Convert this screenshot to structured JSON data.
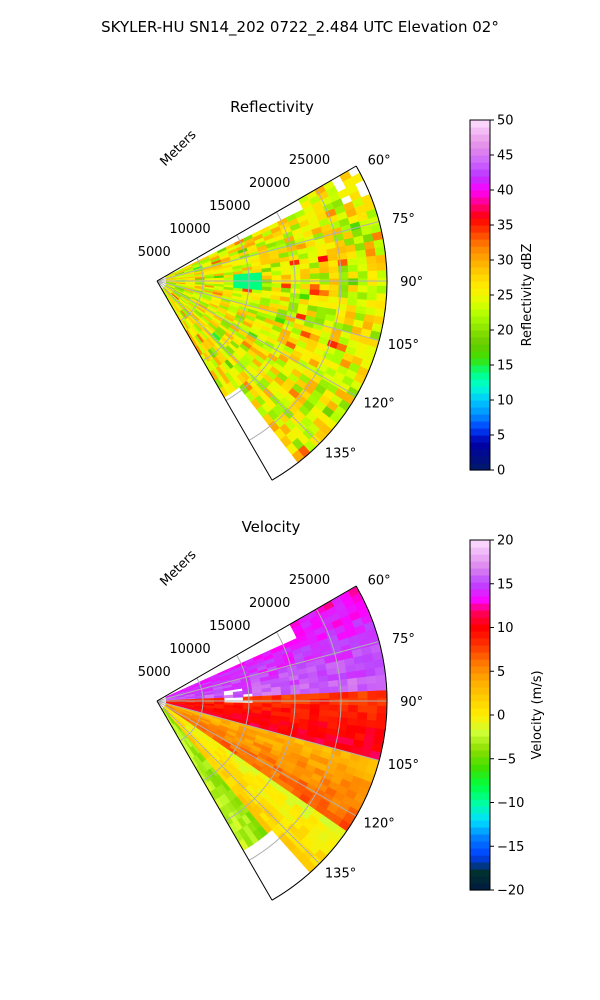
{
  "suptitle": "SKYLER-HU  SN14_202  0722_2.484 UTC Elevation 02°",
  "chart_data": [
    {
      "type": "heatmap",
      "title": "Reflectivity",
      "projection": "polar-sector",
      "range_axis_label": "Meters",
      "range_ticks": [
        5000,
        10000,
        15000,
        20000,
        25000
      ],
      "range_tick_labels": [
        "5000",
        "10000",
        "15000",
        "20000",
        "25000"
      ],
      "range_max": 25000,
      "azimuth_range": [
        60,
        150
      ],
      "azimuth_ticks": [
        60,
        75,
        90,
        105,
        120,
        135
      ],
      "azimuth_tick_labels": [
        "60°",
        "75°",
        "90°",
        "105°",
        "120°",
        "135°"
      ],
      "grid": true,
      "colorbar": {
        "label": "Reflectivity dBZ",
        "min": 0,
        "max": 50,
        "ticks": [
          0,
          5,
          10,
          15,
          20,
          25,
          30,
          35,
          40,
          45,
          50
        ],
        "tick_labels": [
          "0",
          "5",
          "10",
          "15",
          "20",
          "25",
          "30",
          "35",
          "40",
          "45",
          "50"
        ],
        "stops": [
          [
            0,
            "#001a66"
          ],
          [
            4,
            "#0000aa"
          ],
          [
            6,
            "#0040ff"
          ],
          [
            8,
            "#0090ff"
          ],
          [
            10,
            "#00c8ff"
          ],
          [
            12,
            "#00ffd0"
          ],
          [
            14,
            "#00ff80"
          ],
          [
            16,
            "#40e000"
          ],
          [
            18,
            "#66cc00"
          ],
          [
            20,
            "#88e000"
          ],
          [
            22,
            "#aaff00"
          ],
          [
            24,
            "#ddff00"
          ],
          [
            26,
            "#ffee00"
          ],
          [
            28,
            "#ffd000"
          ],
          [
            30,
            "#ffaa00"
          ],
          [
            32,
            "#ff8000"
          ],
          [
            34,
            "#ff4000"
          ],
          [
            36,
            "#ff0000"
          ],
          [
            38,
            "#ff0080"
          ],
          [
            40,
            "#ff00ff"
          ],
          [
            42,
            "#bb33ff"
          ],
          [
            44,
            "#cc66ff"
          ],
          [
            46,
            "#e088e8"
          ],
          [
            48,
            "#f0b0f0"
          ],
          [
            50,
            "#ffe0ff"
          ]
        ]
      },
      "field_summary": {
        "dominant_range_dBZ": [
          20,
          30
        ],
        "notes": "Mostly green-yellow (20-30 dBZ) with scattered orange/red cells (30-38 dBZ) and a small cyan gap near 90° at ~10000 m; sparse edges near 60° and 135°."
      }
    },
    {
      "type": "heatmap",
      "title": "Velocity",
      "projection": "polar-sector",
      "range_axis_label": "Meters",
      "range_ticks": [
        5000,
        10000,
        15000,
        20000,
        25000
      ],
      "range_tick_labels": [
        "5000",
        "10000",
        "15000",
        "20000",
        "25000"
      ],
      "range_max": 25000,
      "azimuth_range": [
        60,
        150
      ],
      "azimuth_ticks": [
        60,
        75,
        90,
        105,
        120,
        135
      ],
      "azimuth_tick_labels": [
        "60°",
        "75°",
        "90°",
        "105°",
        "120°",
        "135°"
      ],
      "grid": true,
      "colorbar": {
        "label": "Velocity (m/s)",
        "min": -20,
        "max": 20,
        "ticks": [
          -20,
          -15,
          -10,
          -5,
          0,
          5,
          10,
          15,
          20
        ],
        "tick_labels": [
          "−20",
          "−15",
          "−10",
          "−5",
          "0",
          "5",
          "10",
          "15",
          "20"
        ],
        "stops": [
          [
            -20,
            "#001a40"
          ],
          [
            -18,
            "#003030"
          ],
          [
            -16,
            "#0040ff"
          ],
          [
            -14,
            "#0080ff"
          ],
          [
            -12,
            "#00e0ff"
          ],
          [
            -10,
            "#00ffa0"
          ],
          [
            -8,
            "#00ff40"
          ],
          [
            -6,
            "#40e000"
          ],
          [
            -4,
            "#88dd00"
          ],
          [
            -2,
            "#ccff33"
          ],
          [
            0,
            "#ffee00"
          ],
          [
            2,
            "#ffcc00"
          ],
          [
            4,
            "#ffaa00"
          ],
          [
            6,
            "#ff7700"
          ],
          [
            8,
            "#ff3300"
          ],
          [
            10,
            "#ff0000"
          ],
          [
            12,
            "#ff0066"
          ],
          [
            13,
            "#ff00ff"
          ],
          [
            15,
            "#bb44ff"
          ],
          [
            17,
            "#dd88ee"
          ],
          [
            20,
            "#ffe0ff"
          ]
        ]
      },
      "field_summary": {
        "sectors": [
          {
            "azimuth": [
              60,
              88
            ],
            "velocity_m_s": [
              13,
              16
            ]
          },
          {
            "azimuth": [
              88,
              105
            ],
            "velocity_m_s": [
              8,
              11
            ]
          },
          {
            "azimuth": [
              105,
              125
            ],
            "velocity_m_s": [
              3,
              7
            ]
          },
          {
            "azimuth": [
              125,
              140
            ],
            "velocity_m_s": [
              -1,
              2
            ]
          },
          {
            "azimuth": [
              140,
              150
            ],
            "velocity_m_s": [
              -4,
              -2
            ]
          }
        ]
      }
    }
  ]
}
